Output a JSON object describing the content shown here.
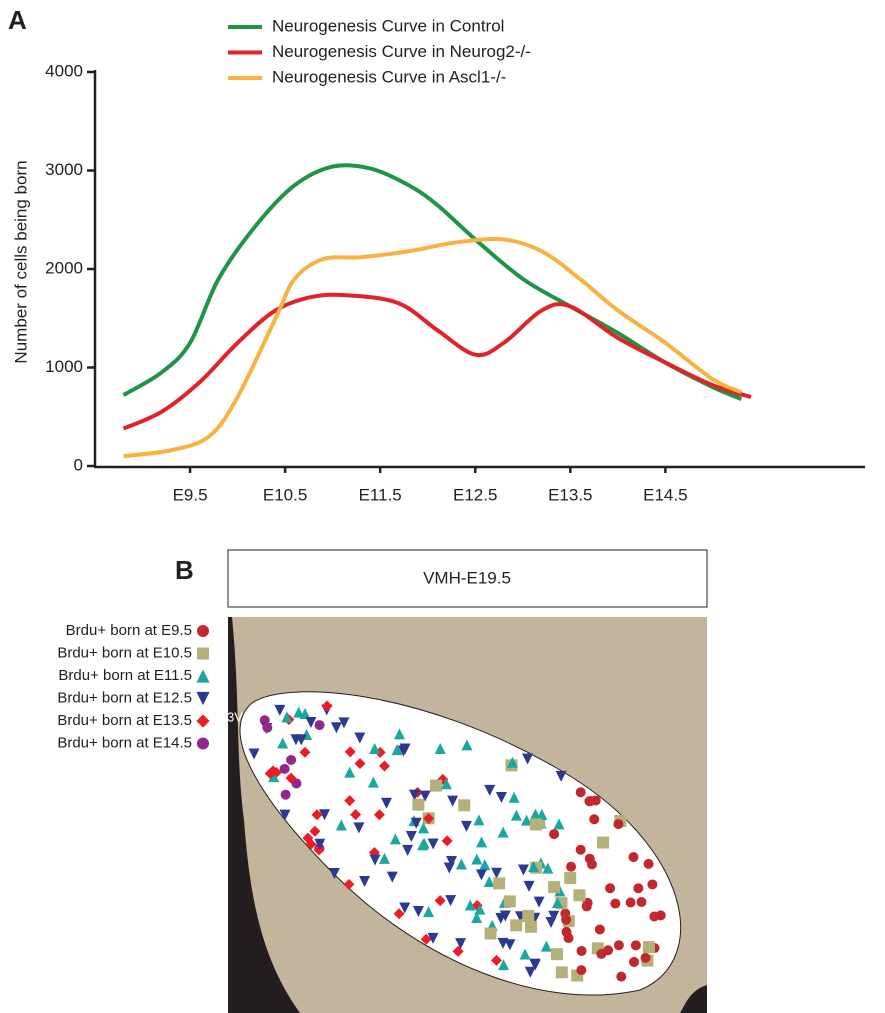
{
  "chart_data": {
    "type": "line",
    "panel_label": "A",
    "y_label": "Number of cells being born",
    "xlim": [
      8.5,
      16.6
    ],
    "xticks": [
      {
        "value": 9.5,
        "label": "E9.5"
      },
      {
        "value": 10.5,
        "label": "E10.5"
      },
      {
        "value": 11.5,
        "label": "E11.5"
      },
      {
        "value": 12.5,
        "label": "E12.5"
      },
      {
        "value": 13.5,
        "label": "E13.5"
      },
      {
        "value": 14.5,
        "label": "E14.5"
      }
    ],
    "ylim": [
      0,
      4000
    ],
    "yticks": [
      0,
      1000,
      2000,
      3000,
      4000
    ],
    "series": [
      {
        "name": "Neurogenesis Curve in Control",
        "color": "#1f9446",
        "x": [
          8.8,
          9.2,
          9.5,
          9.8,
          10.2,
          10.6,
          11.0,
          11.4,
          11.8,
          12.1,
          12.5,
          13.0,
          13.5,
          14.0,
          14.5,
          15.0,
          15.3
        ],
        "values": [
          720,
          950,
          1250,
          1900,
          2450,
          2850,
          3040,
          3020,
          2850,
          2650,
          2300,
          1900,
          1620,
          1350,
          1050,
          800,
          680
        ]
      },
      {
        "name": "Neurogenesis Curve in Neurog2-/-",
        "color": "#e32126",
        "x": [
          8.8,
          9.2,
          9.6,
          10.0,
          10.4,
          10.8,
          11.2,
          11.7,
          12.1,
          12.5,
          12.8,
          13.2,
          13.5,
          14.0,
          14.5,
          15.0,
          15.4
        ],
        "values": [
          380,
          550,
          850,
          1250,
          1580,
          1720,
          1730,
          1650,
          1380,
          1130,
          1250,
          1580,
          1620,
          1300,
          1050,
          820,
          700
        ]
      },
      {
        "name": "Neurogenesis Curve in Ascl1-/-",
        "color": "#f7b240",
        "x": [
          8.8,
          9.3,
          9.7,
          10.0,
          10.4,
          10.6,
          10.9,
          11.3,
          11.8,
          12.3,
          12.8,
          13.2,
          13.6,
          14.0,
          14.5,
          15.0,
          15.3
        ],
        "values": [
          100,
          160,
          300,
          700,
          1500,
          1900,
          2100,
          2120,
          2180,
          2270,
          2300,
          2180,
          1900,
          1580,
          1250,
          880,
          750
        ]
      }
    ]
  },
  "diagram": {
    "panel_label": "B",
    "title": "VMH-E19.5",
    "region_label": "3V",
    "legend": [
      {
        "label": "Brdu+ born at E9.5",
        "color": "#c1272d",
        "shape": "circle"
      },
      {
        "label": "Brdu+ born at E10.5",
        "color": "#b5b07a",
        "shape": "square"
      },
      {
        "label": "Brdu+ born at E11.5",
        "color": "#19a79f",
        "shape": "triangle"
      },
      {
        "label": "Brdu+ born at E12.5",
        "color": "#2b3990",
        "shape": "triangle-down"
      },
      {
        "label": "Brdu+ born at E13.5",
        "color": "#ed1c24",
        "shape": "diamond"
      },
      {
        "label": "Brdu+ born at E14.5",
        "color": "#92278f",
        "shape": "circle"
      }
    ]
  }
}
